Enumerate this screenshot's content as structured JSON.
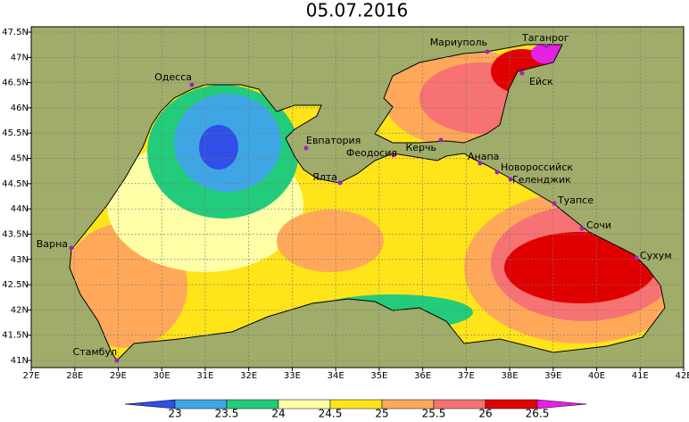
{
  "title": "05.07.2016",
  "x_axis_labels": [
    "27E",
    "28E",
    "29E",
    "30E",
    "31E",
    "32E",
    "33E",
    "34E",
    "35E",
    "36E",
    "37E",
    "38E",
    "39E",
    "40E",
    "41E",
    "42E"
  ],
  "y_axis_labels": [
    "47.5N",
    "47N",
    "46.5N",
    "46N",
    "45.5N",
    "45N",
    "44.5N",
    "44N",
    "43.5N",
    "43N",
    "42.5N",
    "42N",
    "41.5N",
    "41N"
  ],
  "cities": [
    "Одесса",
    "Мариуполь",
    "Таганрог",
    "Ейск",
    "Евпатория",
    "Феодосия",
    "Керчь",
    "Ялта",
    "Анапа",
    "Новороссийск",
    "Геленджик",
    "Туапсе",
    "Сочи",
    "Сухум",
    "Варна",
    "Стамбул"
  ],
  "colorbar": {
    "levels": [
      "23",
      "23.5",
      "24",
      "24.5",
      "25",
      "25.5",
      "26",
      "26.5"
    ],
    "colors": [
      "#2f4fe6",
      "#3fa6e6",
      "#22cc7a",
      "#ffffa8",
      "#ffe41a",
      "#ffa85a",
      "#f77272",
      "#e00000",
      "#e81ee8"
    ]
  }
}
